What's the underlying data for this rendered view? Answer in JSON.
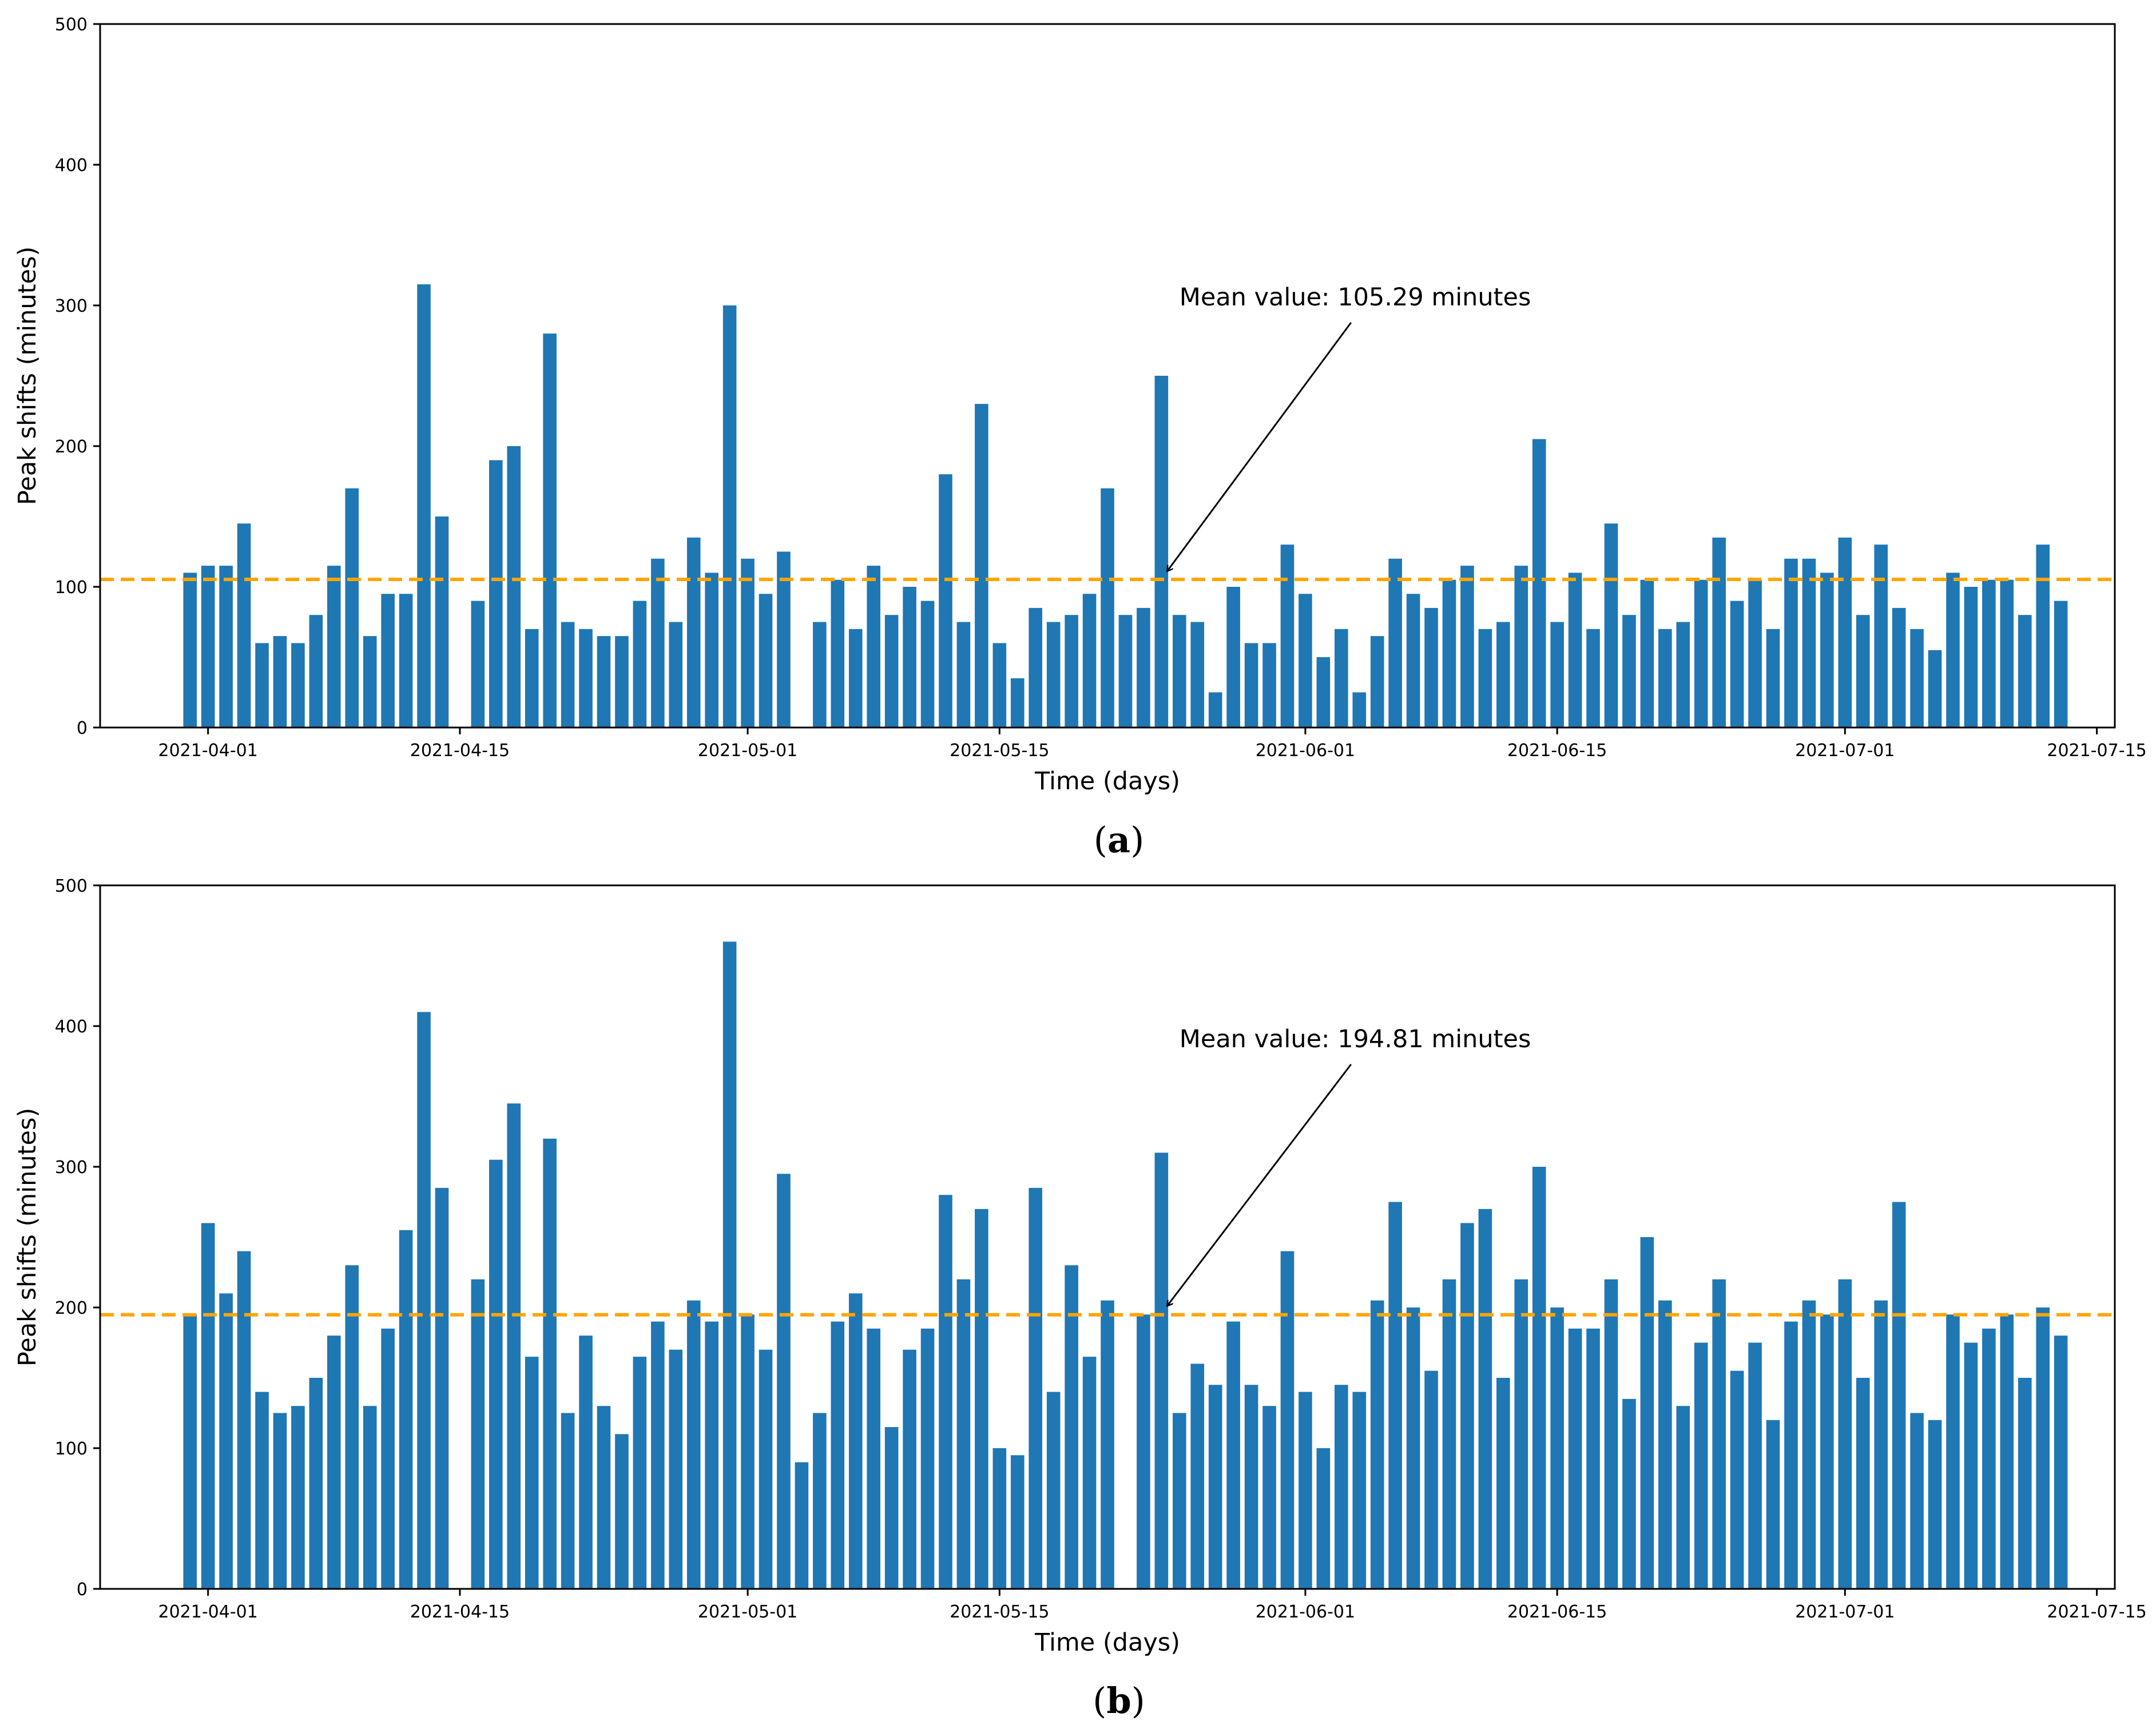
{
  "colors": {
    "bar": "#1f77b4",
    "mean_line": "#ffa500",
    "axis": "#000000",
    "background": "#ffffff"
  },
  "chart_data": [
    {
      "id": "a",
      "type": "bar",
      "caption": {
        "open": "(",
        "letter": "a",
        "close": ")"
      },
      "xlabel": "Time (days)",
      "ylabel": "Peak shifts (minutes)",
      "ylim": [
        0,
        500
      ],
      "yticks": [
        0,
        100,
        200,
        300,
        400,
        500
      ],
      "xlim": [
        "2021-03-26",
        "2021-07-16"
      ],
      "xticks": [
        "2021-04-01",
        "2021-04-15",
        "2021-05-01",
        "2021-05-15",
        "2021-06-01",
        "2021-06-15",
        "2021-07-01",
        "2021-07-15"
      ],
      "start_date": "2021-03-31",
      "values": [
        110,
        115,
        115,
        145,
        60,
        65,
        60,
        80,
        115,
        170,
        65,
        95,
        95,
        315,
        150,
        null,
        90,
        190,
        200,
        70,
        280,
        75,
        70,
        65,
        65,
        90,
        120,
        75,
        135,
        110,
        300,
        120,
        95,
        125,
        null,
        75,
        105,
        70,
        115,
        80,
        100,
        90,
        180,
        75,
        230,
        60,
        35,
        85,
        75,
        80,
        95,
        170,
        80,
        85,
        250,
        80,
        75,
        25,
        100,
        60,
        60,
        130,
        95,
        50,
        70,
        25,
        65,
        120,
        95,
        85,
        105,
        115,
        70,
        75,
        115,
        205,
        75,
        110,
        70,
        145,
        80,
        105,
        70,
        75,
        105,
        135,
        90,
        105,
        70,
        120,
        120,
        110,
        135,
        80,
        130,
        85,
        70,
        55,
        110,
        100,
        105,
        105,
        80,
        130,
        90
      ],
      "mean_value": 105.29,
      "annotation": {
        "text": "Mean value: 105.29 minutes",
        "text_x_date": "2021-05-25",
        "text_y": 300,
        "arrow_x_date": "2021-05-24",
        "arrow_y": 107
      }
    },
    {
      "id": "b",
      "type": "bar",
      "caption": {
        "open": "(",
        "letter": "b",
        "close": ")"
      },
      "xlabel": "Time (days)",
      "ylabel": "Peak shifts (minutes)",
      "ylim": [
        0,
        500
      ],
      "yticks": [
        0,
        100,
        200,
        300,
        400,
        500
      ],
      "xlim": [
        "2021-03-26",
        "2021-07-16"
      ],
      "xticks": [
        "2021-04-01",
        "2021-04-15",
        "2021-05-01",
        "2021-05-15",
        "2021-06-01",
        "2021-06-15",
        "2021-07-01",
        "2021-07-15"
      ],
      "start_date": "2021-03-31",
      "values": [
        195,
        260,
        210,
        240,
        140,
        125,
        130,
        150,
        180,
        230,
        130,
        185,
        255,
        410,
        285,
        null,
        220,
        305,
        345,
        165,
        320,
        125,
        180,
        130,
        110,
        165,
        190,
        170,
        205,
        190,
        460,
        195,
        170,
        295,
        90,
        125,
        190,
        210,
        185,
        115,
        170,
        185,
        280,
        220,
        270,
        100,
        95,
        285,
        140,
        230,
        165,
        205,
        null,
        195,
        310,
        125,
        160,
        145,
        190,
        145,
        130,
        240,
        140,
        100,
        145,
        140,
        205,
        275,
        200,
        155,
        220,
        260,
        270,
        150,
        220,
        300,
        200,
        185,
        185,
        220,
        135,
        250,
        205,
        130,
        175,
        220,
        155,
        175,
        120,
        190,
        205,
        195,
        220,
        150,
        205,
        275,
        125,
        120,
        195,
        175,
        185,
        195,
        150,
        200,
        180
      ],
      "mean_value": 194.81,
      "annotation": {
        "text": "Mean value: 194.81 minutes",
        "text_x_date": "2021-05-25",
        "text_y": 385,
        "arrow_x_date": "2021-05-24",
        "arrow_y": 197
      }
    }
  ]
}
